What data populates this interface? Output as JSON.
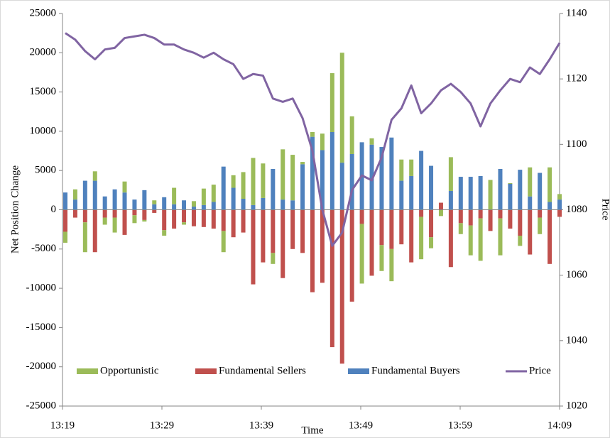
{
  "chart_data": {
    "type": "bar",
    "x_label": "Time",
    "y_label": "Net Position Change",
    "y2_label": "Price",
    "categories": [
      "13:19",
      null,
      null,
      null,
      null,
      null,
      null,
      null,
      null,
      null,
      "13:29",
      null,
      null,
      null,
      null,
      null,
      null,
      null,
      null,
      null,
      "13:39",
      null,
      null,
      null,
      null,
      null,
      null,
      null,
      null,
      null,
      "13:49",
      null,
      null,
      null,
      null,
      null,
      null,
      null,
      null,
      null,
      "13:59",
      null,
      null,
      null,
      null,
      null,
      null,
      null,
      null,
      null,
      "14:09"
    ],
    "series": [
      {
        "name": "Opportunistic",
        "color": "#9bbb59",
        "values": [
          -1400,
          1300,
          -3800,
          1200,
          -900,
          -1900,
          1400,
          -1000,
          -200,
          500,
          -700,
          2100,
          -300,
          700,
          2100,
          2200,
          -2700,
          1600,
          3400,
          6000,
          4400,
          -1400,
          6400,
          5800,
          300,
          600,
          2100,
          7500,
          14000,
          4800,
          -7600,
          800,
          -3300,
          -4100,
          2700,
          2100,
          -5400,
          -1400,
          -800,
          4300,
          -1400,
          -3800,
          -5400,
          3800,
          -4700,
          100,
          -1300,
          3700,
          -2100,
          4400,
          700
        ]
      },
      {
        "name": "Fundamental Sellers",
        "color": "#c0504d",
        "values": [
          -2800,
          -1000,
          -1600,
          -5400,
          -1000,
          -1000,
          -3200,
          -700,
          -1300,
          -400,
          -2600,
          -2400,
          -1600,
          -2100,
          -2200,
          -2400,
          -2700,
          -3500,
          -2900,
          -9500,
          -6700,
          -5500,
          -8700,
          -5000,
          -5500,
          -10500,
          -9300,
          -17500,
          -19600,
          -11700,
          -1800,
          -8400,
          -4500,
          -5000,
          -4400,
          -6700,
          -900,
          -3500,
          900,
          -7300,
          -1700,
          -2000,
          -1100,
          -2700,
          -1100,
          -2400,
          -3300,
          -5700,
          -1000,
          -6900,
          -900
        ]
      },
      {
        "name": "Fundamental Buyers",
        "color": "#4f81bd",
        "values": [
          2200,
          1300,
          3700,
          3700,
          1700,
          2600,
          2200,
          1300,
          2500,
          700,
          1600,
          700,
          1200,
          400,
          600,
          1000,
          5500,
          2800,
          1400,
          600,
          1500,
          5200,
          1300,
          1200,
          5800,
          9300,
          7600,
          9900,
          6000,
          7100,
          8600,
          8300,
          8000,
          9200,
          3700,
          4300,
          7500,
          5600,
          0,
          2400,
          4200,
          4200,
          4300,
          0,
          5200,
          3300,
          5100,
          1700,
          4700,
          1000,
          1300
        ]
      },
      {
        "name": "Price",
        "color": "#8064a2",
        "axis": "y2",
        "values": [
          1134,
          1132,
          1128.5,
          1126,
          1129,
          1129.5,
          1132.5,
          1133,
          1133.5,
          1132.5,
          1130.5,
          1130.5,
          1129,
          1128,
          1126.5,
          1128,
          1126,
          1124.5,
          1120,
          1121.5,
          1121,
          1114,
          1113,
          1114,
          1108,
          1098,
          1080,
          1069,
          1073,
          1086,
          1090.5,
          1089,
          1096,
          1107.5,
          1111,
          1118,
          1109.5,
          1112.5,
          1116.5,
          1118.5,
          1116,
          1112.5,
          1105.5,
          1112.5,
          1116.5,
          1120,
          1119,
          1123.5,
          1121.5,
          1126,
          1131
        ]
      }
    ],
    "ylim": [
      -25000,
      25000
    ],
    "yticks": [
      -25000,
      -20000,
      -15000,
      -10000,
      -5000,
      0,
      5000,
      10000,
      15000,
      20000,
      25000
    ],
    "y2lim": [
      1020,
      1140
    ],
    "y2ticks": [
      1020,
      1040,
      1060,
      1080,
      1100,
      1120,
      1140
    ],
    "legend": "bottom"
  }
}
